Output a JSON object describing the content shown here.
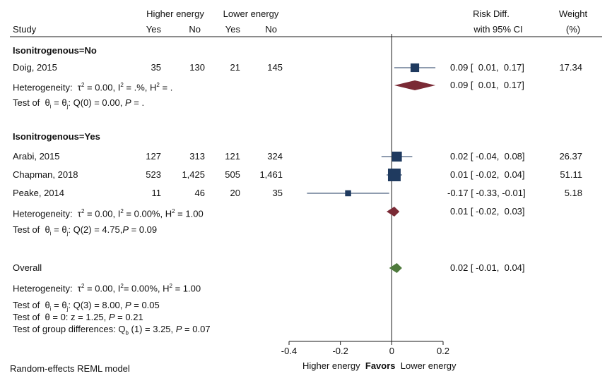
{
  "header": {
    "group1": "Higher energy",
    "group2": "Lower energy",
    "study": "Study",
    "yes": "Yes",
    "no": "No",
    "rd_line1": "Risk Diff.",
    "rd_line2": "with 95% CI",
    "weight_line1": "Weight",
    "weight_line2": "(%)"
  },
  "subgroups": [
    {
      "label": "Isonitrogenous=No",
      "studies": [
        {
          "name": "Doig, 2015",
          "he_yes": "35",
          "he_no": "130",
          "le_yes": "21",
          "le_no": "145",
          "est_text": "0.09 [  0.01,  0.17]",
          "weight": "17.34"
        }
      ],
      "het": {
        "prefix": "Heterogeneity:",
        "tau": "τ",
        "tau_val": " = 0.00, ",
        "i": "I",
        "i_val": " = .%, ",
        "h": "H",
        "h_val": " = ."
      },
      "diamond_text": "0.09 [  0.01,  0.17]",
      "test": {
        "prefix": "Test of",
        "theta": "θ",
        "sub_i": "i",
        "eq": " = ",
        "sub_j": "j",
        "rest": ": Q(0) = 0.00, ",
        "p": "P",
        "p_val": " = ."
      }
    },
    {
      "label": "Isonitrogenous=Yes",
      "studies": [
        {
          "name": "Arabi, 2015",
          "he_yes": "127",
          "he_no": "313",
          "le_yes": "121",
          "le_no": "324",
          "est_text": "0.02 [ -0.04,  0.08]",
          "weight": "26.37"
        },
        {
          "name": "Chapman, 2018",
          "he_yes": "523",
          "he_no": "1,425",
          "le_yes": "505",
          "le_no": "1,461",
          "est_text": "0.01 [ -0.02,  0.04]",
          "weight": "51.11"
        },
        {
          "name": "Peake, 2014",
          "he_yes": "11",
          "he_no": "46",
          "le_yes": "20",
          "le_no": "35",
          "est_text": "-0.17 [ -0.33, -0.01]",
          "weight": "5.18"
        }
      ],
      "het": {
        "prefix": "Heterogeneity:",
        "tau": "τ",
        "tau_val": " = 0.00, ",
        "i": "I",
        "i_val": " = 0.00%, ",
        "h": "H",
        "h_val": " = 1.00"
      },
      "diamond_text": "0.01 [ -0.02,  0.03]",
      "test": {
        "prefix": "Test of",
        "theta": "θ",
        "sub_i": "i",
        "eq": " = ",
        "sub_j": "j",
        "rest": ": Q(2) = 4.75,",
        "p": "P",
        "p_val": " = 0.09"
      }
    }
  ],
  "overall": {
    "label": "Overall",
    "est_text": "0.02 [ -0.01,  0.04]",
    "het": {
      "prefix": "Heterogeneity:",
      "tau": "τ",
      "tau_val": " = 0.00, ",
      "i": "I",
      "i_val": "= 0.00%, ",
      "h": "H",
      "h_val": " = 1.00"
    },
    "test1": {
      "prefix": "Test of",
      "theta": "θ",
      "sub_i": "i",
      "eq": " = ",
      "sub_j": "j",
      "rest": ": Q(3) = 8.00, ",
      "p": "P",
      "p_val": " = 0.05"
    },
    "test2": {
      "prefix": "Test of",
      "theta": "θ",
      "rest": " = 0: z = 1.25, ",
      "p": "P",
      "p_val": " = 0.21"
    },
    "test3": {
      "prefix": "Test of group differences: Q",
      "sub": "b",
      "rest": " (1) = 3.25, ",
      "p": "P",
      "p_val": " = 0.07"
    }
  },
  "footer": {
    "model": "Random-effects REML model",
    "favors_left": "Higher energy",
    "favors_mid": "Favors",
    "favors_right": "Lower energy"
  },
  "colors": {
    "study_marker": "#1f3a5f",
    "subgroup_diamond": "#7a2a35",
    "overall_diamond": "#4e7a3c",
    "line": "#1a1a1a"
  },
  "chart_data": {
    "type": "forest",
    "x_ticks": [
      -0.4,
      -0.2,
      0,
      0.2
    ],
    "xlim": [
      -0.4,
      0.2
    ],
    "null_line": 0,
    "studies": [
      {
        "name": "Doig, 2015",
        "subgroup": "Isonitrogenous=No",
        "rd": 0.09,
        "lo": 0.01,
        "hi": 0.17,
        "weight": 17.34
      },
      {
        "name": "Arabi, 2015",
        "subgroup": "Isonitrogenous=Yes",
        "rd": 0.02,
        "lo": -0.04,
        "hi": 0.08,
        "weight": 26.37
      },
      {
        "name": "Chapman, 2018",
        "subgroup": "Isonitrogenous=Yes",
        "rd": 0.01,
        "lo": -0.02,
        "hi": 0.04,
        "weight": 51.11
      },
      {
        "name": "Peake, 2014",
        "subgroup": "Isonitrogenous=Yes",
        "rd": -0.17,
        "lo": -0.33,
        "hi": -0.01,
        "weight": 5.18
      }
    ],
    "subgroup_pooled": [
      {
        "subgroup": "Isonitrogenous=No",
        "rd": 0.09,
        "lo": 0.01,
        "hi": 0.17
      },
      {
        "subgroup": "Isonitrogenous=Yes",
        "rd": 0.01,
        "lo": -0.02,
        "hi": 0.03
      }
    ],
    "overall": {
      "rd": 0.02,
      "lo": -0.01,
      "hi": 0.04
    }
  }
}
